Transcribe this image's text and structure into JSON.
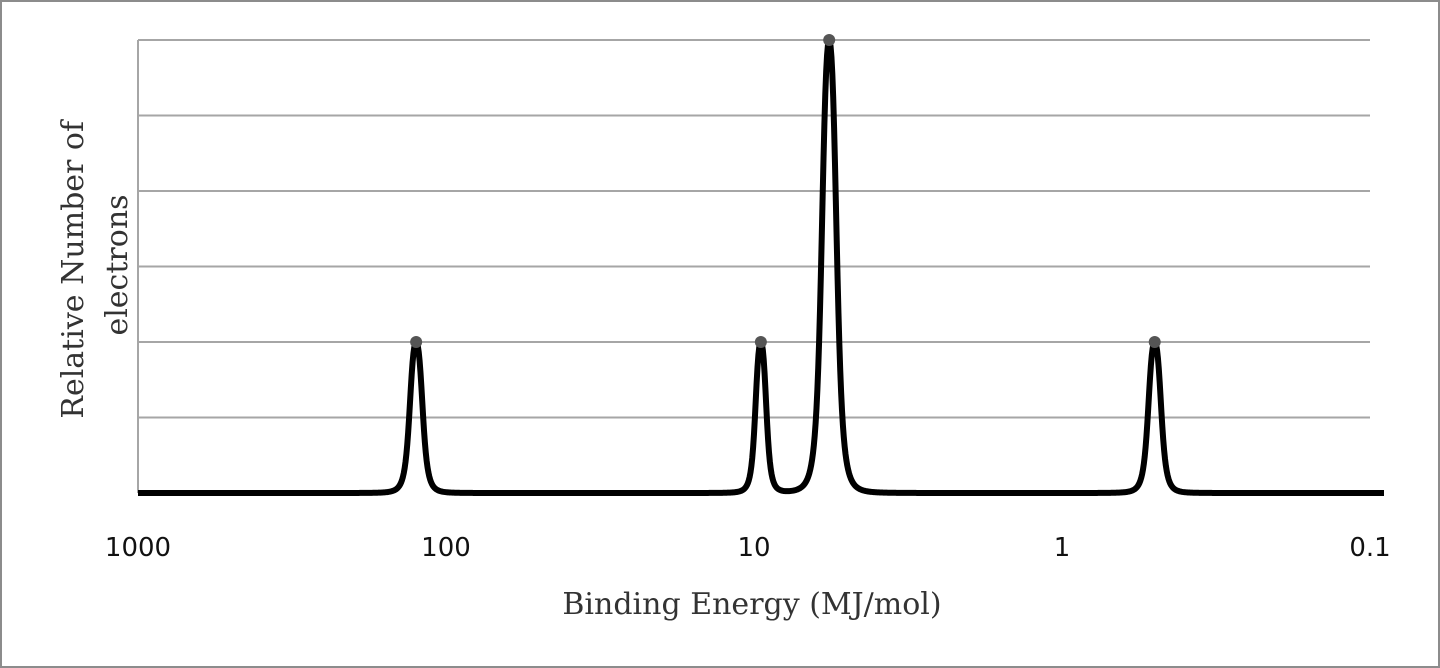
{
  "chart_data": {
    "type": "line",
    "xlabel": "Binding Energy (MJ/mol)",
    "ylabel_lines": [
      "Relative Number of",
      "electrons"
    ],
    "x_scale": "log",
    "x_reversed": true,
    "xlim": [
      1000,
      0.1
    ],
    "x_ticks": [
      1000,
      100,
      10,
      1,
      0.1
    ],
    "x_tick_labels": [
      "1000",
      "100",
      "10",
      "1",
      "0.1"
    ],
    "ylim": [
      0,
      6
    ],
    "y_gridlines": [
      1,
      2,
      3,
      4,
      5,
      6
    ],
    "grid": true,
    "legend": "none",
    "line_color": "#000000",
    "grid_color": "#a6a6a6",
    "series": [
      {
        "peaks": [
          {
            "x": 125,
            "y": 2
          },
          {
            "x": 9.5,
            "y": 2
          },
          {
            "x": 5.7,
            "y": 6
          },
          {
            "x": 0.5,
            "y": 2
          }
        ]
      }
    ]
  }
}
